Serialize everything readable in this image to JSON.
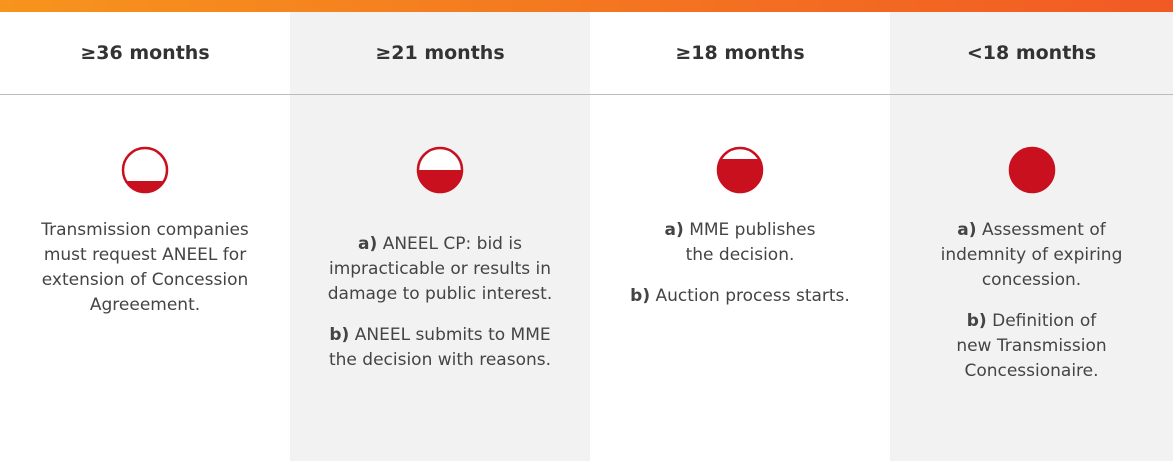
{
  "columns": [
    {
      "header": "≥36 months",
      "paragraphs": [
        {
          "lines": [
            "Transmission companies",
            "must request ANEEL for",
            "extension of Concession",
            "Agreeement."
          ]
        }
      ]
    },
    {
      "header": "≥21 months",
      "paragraphs": [
        {
          "label": "a)",
          "lines": [
            "ANEEL CP:  bid is",
            "impracticable or results in",
            "damage to public interest."
          ]
        },
        {
          "label": "b)",
          "lines": [
            "ANEEL submits to MME",
            "the decision with reasons."
          ]
        }
      ]
    },
    {
      "header": "≥18 months",
      "paragraphs": [
        {
          "label": "a)",
          "lines": [
            "MME publishes",
            "the decision."
          ]
        },
        {
          "label": "b)",
          "lines": [
            "Auction process starts."
          ]
        }
      ]
    },
    {
      "header": "<18 months",
      "paragraphs": [
        {
          "label": "a)",
          "lines": [
            "Assessment of",
            "indemnity of  expiring",
            "concession."
          ]
        },
        {
          "label": "b)",
          "lines": [
            "Definition of",
            "new Transmission",
            "Concessionaire."
          ]
        }
      ]
    }
  ]
}
